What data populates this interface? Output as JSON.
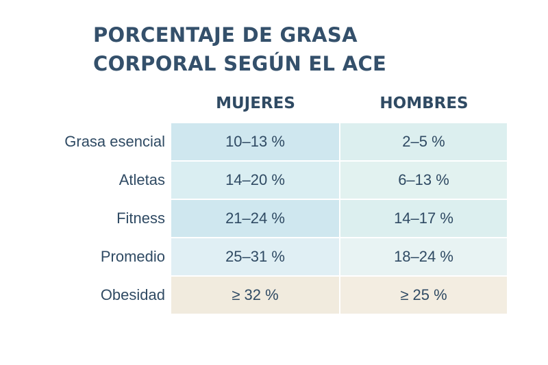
{
  "chart_data": {
    "type": "table",
    "title_lines": [
      "PORCENTAJE DE GRASA",
      "CORPORAL SEGÚN EL ACE"
    ],
    "columns": [
      "MUJERES",
      "HOMBRES"
    ],
    "rows": [
      {
        "label": "Grasa esencial",
        "women": "10–13 %",
        "men": "2–5 %"
      },
      {
        "label": "Atletas",
        "women": "14–20 %",
        "men": "6–13 %"
      },
      {
        "label": "Fitness",
        "women": "21–24 %",
        "men": "14–17 %"
      },
      {
        "label": "Promedio",
        "women": "25–31 %",
        "men": "18–24 %"
      },
      {
        "label": "Obesidad",
        "women": "≥ 32 %",
        "men": "≥ 25 %"
      }
    ]
  },
  "colors": {
    "title": "#34506b",
    "text": "#2f4a63",
    "row_colors": [
      {
        "women": "#cfe7ef",
        "men": "#dcefef"
      },
      {
        "women": "#daeef2",
        "men": "#e2f2f0"
      },
      {
        "women": "#cfe7ef",
        "men": "#dcefef"
      },
      {
        "women": "#e0eff4",
        "men": "#e8f3f3"
      },
      {
        "women": "#f1ebde",
        "men": "#f3ede1"
      }
    ]
  }
}
